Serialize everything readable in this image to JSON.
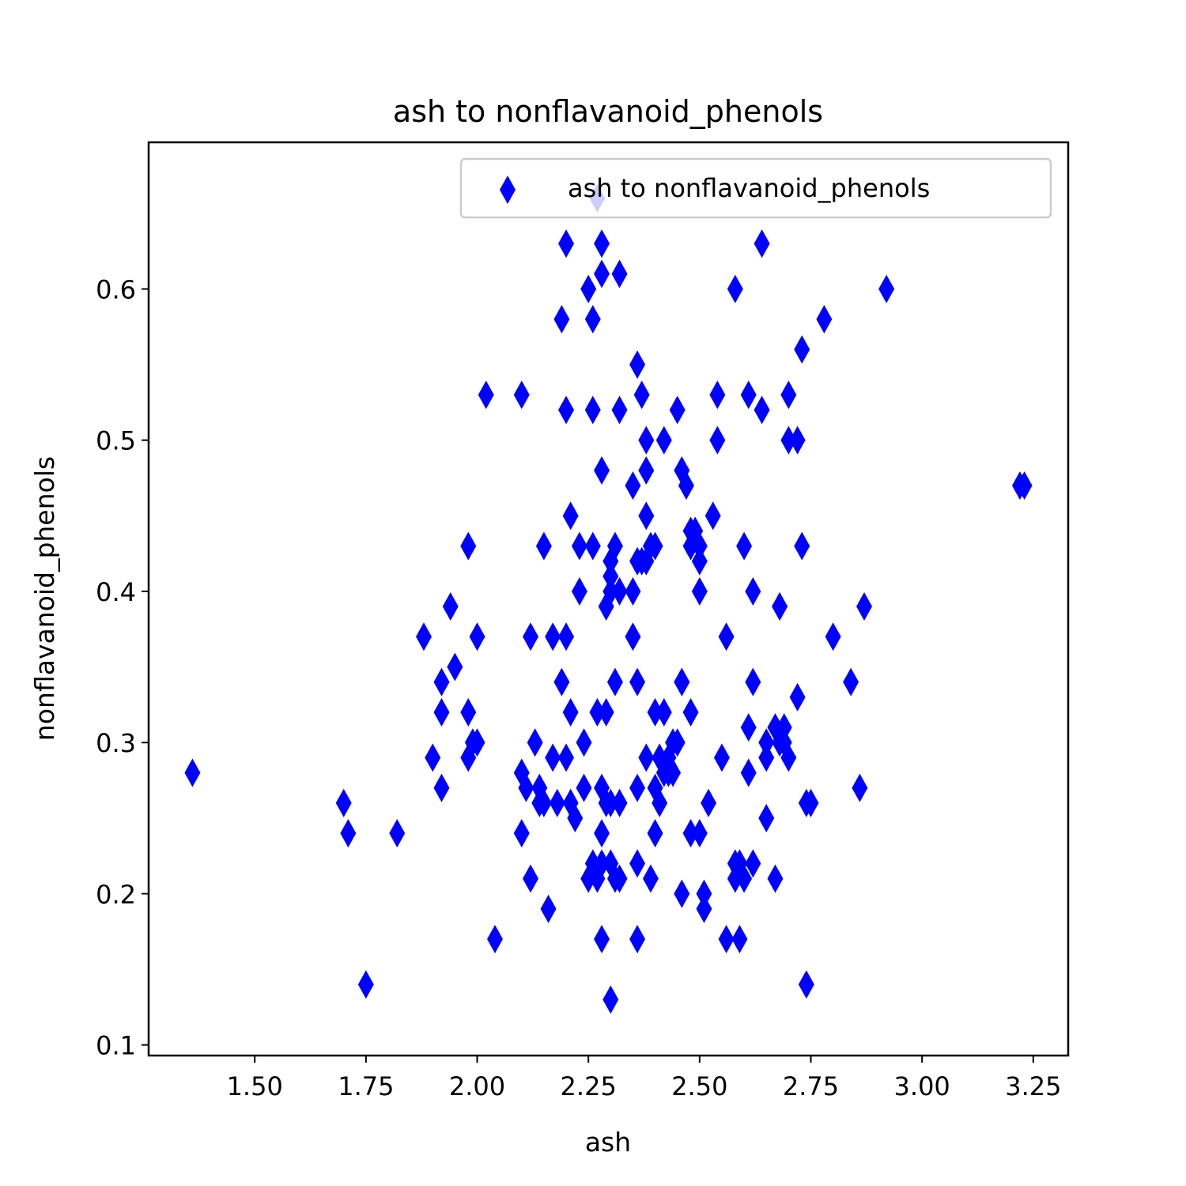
{
  "chart_data": {
    "type": "scatter",
    "title": "ash to nonflavanoid_phenols",
    "xlabel": "ash",
    "ylabel": "nonflavanoid_phenols",
    "xlim": [
      1.2615,
      3.3285
    ],
    "ylim": [
      0.093,
      0.697
    ],
    "xticks": [
      1.5,
      1.75,
      2.0,
      2.25,
      2.5,
      2.75,
      3.0,
      3.25
    ],
    "xtick_labels": [
      "1.50",
      "1.75",
      "2.00",
      "2.25",
      "2.50",
      "2.75",
      "3.00",
      "3.25"
    ],
    "yticks": [
      0.1,
      0.2,
      0.3,
      0.4,
      0.5,
      0.6
    ],
    "ytick_labels": [
      "0.1",
      "0.2",
      "0.3",
      "0.4",
      "0.5",
      "0.6"
    ],
    "grid": false,
    "legend": {
      "position": "top-right",
      "entries": [
        "ash to nonflavanoid_phenols"
      ]
    },
    "marker": "thin-diamond",
    "color": "#0000ff",
    "series": [
      {
        "name": "ash to nonflavanoid_phenols",
        "x": [
          1.36,
          1.7,
          1.71,
          1.75,
          1.82,
          1.88,
          1.9,
          1.92,
          1.92,
          1.92,
          1.94,
          1.95,
          1.98,
          1.98,
          1.98,
          1.99,
          2.0,
          2.0,
          2.02,
          2.04,
          2.1,
          2.1,
          2.1,
          2.11,
          2.12,
          2.12,
          2.13,
          2.14,
          2.14,
          2.15,
          2.15,
          2.16,
          2.17,
          2.17,
          2.18,
          2.19,
          2.19,
          2.2,
          2.2,
          2.2,
          2.2,
          2.21,
          2.21,
          2.21,
          2.22,
          2.23,
          2.23,
          2.24,
          2.24,
          2.25,
          2.25,
          2.26,
          2.26,
          2.26,
          2.26,
          2.27,
          2.27,
          2.27,
          2.28,
          2.28,
          2.28,
          2.28,
          2.28,
          2.28,
          2.28,
          2.29,
          2.29,
          2.29,
          2.3,
          2.3,
          2.3,
          2.3,
          2.3,
          2.3,
          2.31,
          2.31,
          2.31,
          2.32,
          2.32,
          2.32,
          2.32,
          2.32,
          2.35,
          2.35,
          2.35,
          2.36,
          2.36,
          2.36,
          2.36,
          2.36,
          2.36,
          2.37,
          2.37,
          2.38,
          2.38,
          2.38,
          2.38,
          2.38,
          2.39,
          2.39,
          2.4,
          2.4,
          2.4,
          2.4,
          2.41,
          2.41,
          2.42,
          2.42,
          2.42,
          2.43,
          2.43,
          2.44,
          2.44,
          2.45,
          2.45,
          2.46,
          2.46,
          2.46,
          2.46,
          2.47,
          2.48,
          2.48,
          2.48,
          2.48,
          2.49,
          2.5,
          2.5,
          2.5,
          2.5,
          2.51,
          2.51,
          2.52,
          2.53,
          2.54,
          2.54,
          2.55,
          2.56,
          2.56,
          2.58,
          2.58,
          2.58,
          2.59,
          2.59,
          2.6,
          2.6,
          2.61,
          2.61,
          2.61,
          2.62,
          2.62,
          2.62,
          2.64,
          2.64,
          2.65,
          2.65,
          2.65,
          2.67,
          2.67,
          2.68,
          2.68,
          2.68,
          2.69,
          2.69,
          2.7,
          2.7,
          2.7,
          2.72,
          2.72,
          2.73,
          2.73,
          2.74,
          2.74,
          2.75,
          2.78,
          2.8,
          2.84,
          2.86,
          2.87,
          2.92,
          3.22,
          3.23
        ],
        "y": [
          0.28,
          0.26,
          0.24,
          0.14,
          0.24,
          0.37,
          0.29,
          0.34,
          0.32,
          0.27,
          0.39,
          0.35,
          0.43,
          0.32,
          0.29,
          0.3,
          0.37,
          0.3,
          0.53,
          0.17,
          0.53,
          0.28,
          0.24,
          0.27,
          0.37,
          0.21,
          0.3,
          0.26,
          0.27,
          0.43,
          0.26,
          0.19,
          0.37,
          0.29,
          0.26,
          0.58,
          0.34,
          0.63,
          0.52,
          0.37,
          0.29,
          0.45,
          0.32,
          0.26,
          0.25,
          0.43,
          0.4,
          0.3,
          0.27,
          0.6,
          0.21,
          0.58,
          0.52,
          0.43,
          0.22,
          0.66,
          0.32,
          0.21,
          0.63,
          0.61,
          0.48,
          0.27,
          0.24,
          0.17,
          0.22,
          0.39,
          0.32,
          0.26,
          0.42,
          0.41,
          0.4,
          0.26,
          0.22,
          0.13,
          0.43,
          0.34,
          0.21,
          0.61,
          0.52,
          0.4,
          0.26,
          0.21,
          0.47,
          0.37,
          0.4,
          0.55,
          0.42,
          0.34,
          0.27,
          0.22,
          0.17,
          0.53,
          0.42,
          0.5,
          0.48,
          0.45,
          0.42,
          0.29,
          0.43,
          0.21,
          0.43,
          0.32,
          0.27,
          0.24,
          0.29,
          0.26,
          0.5,
          0.32,
          0.28,
          0.29,
          0.28,
          0.3,
          0.28,
          0.52,
          0.3,
          0.48,
          0.34,
          0.34,
          0.2,
          0.47,
          0.44,
          0.43,
          0.32,
          0.24,
          0.44,
          0.43,
          0.42,
          0.4,
          0.24,
          0.19,
          0.2,
          0.26,
          0.45,
          0.53,
          0.5,
          0.29,
          0.37,
          0.17,
          0.6,
          0.22,
          0.21,
          0.17,
          0.22,
          0.43,
          0.21,
          0.53,
          0.31,
          0.28,
          0.4,
          0.34,
          0.22,
          0.63,
          0.52,
          0.29,
          0.25,
          0.3,
          0.21,
          0.31,
          0.3,
          0.39,
          0.39,
          0.31,
          0.3,
          0.53,
          0.5,
          0.29,
          0.5,
          0.33,
          0.56,
          0.43,
          0.26,
          0.14,
          0.26,
          0.58,
          0.37,
          0.34,
          0.27,
          0.39,
          0.6,
          0.47,
          0.47
        ]
      }
    ]
  }
}
